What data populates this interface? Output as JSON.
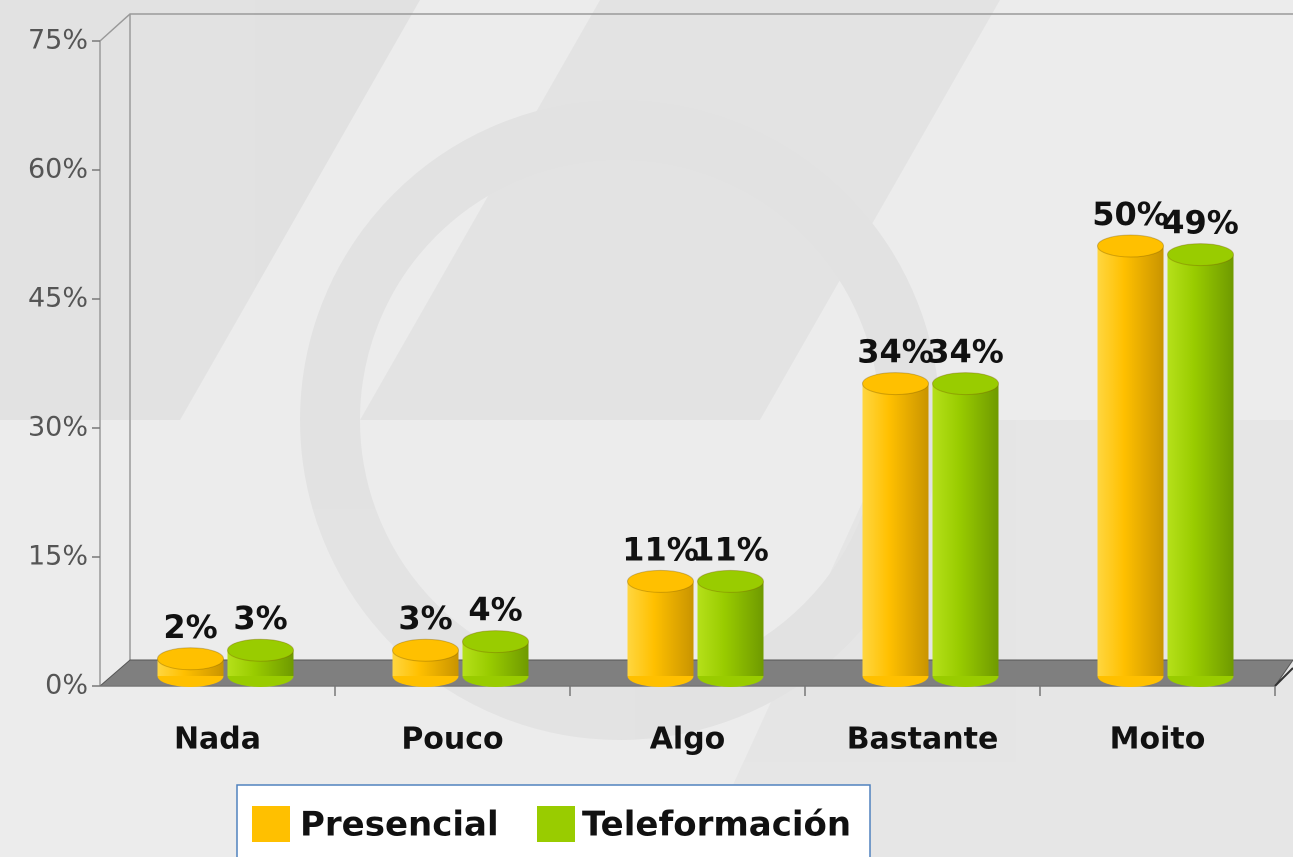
{
  "chart_data": {
    "type": "bar",
    "categories": [
      "Nada",
      "Pouco",
      "Algo",
      "Bastante",
      "Moito"
    ],
    "series": [
      {
        "name": "Presencial",
        "color": "#ffc000",
        "values": [
          2,
          3,
          11,
          34,
          50
        ],
        "value_labels": [
          "2%",
          "3%",
          "11%",
          "34%",
          "50%"
        ]
      },
      {
        "name": "Teleformación",
        "color": "#99cc00",
        "values": [
          3,
          4,
          11,
          34,
          49
        ],
        "value_labels": [
          "3%",
          "4%",
          "11%",
          "34%",
          "49%"
        ]
      }
    ],
    "ylim": [
      0,
      75
    ],
    "yticks": [
      {
        "value": 0,
        "label": "0%"
      },
      {
        "value": 15,
        "label": "15%"
      },
      {
        "value": 30,
        "label": "30%"
      },
      {
        "value": 45,
        "label": "45%"
      },
      {
        "value": 60,
        "label": "60%"
      },
      {
        "value": 75,
        "label": "75%"
      }
    ],
    "grid": false,
    "legend": "bottom"
  }
}
